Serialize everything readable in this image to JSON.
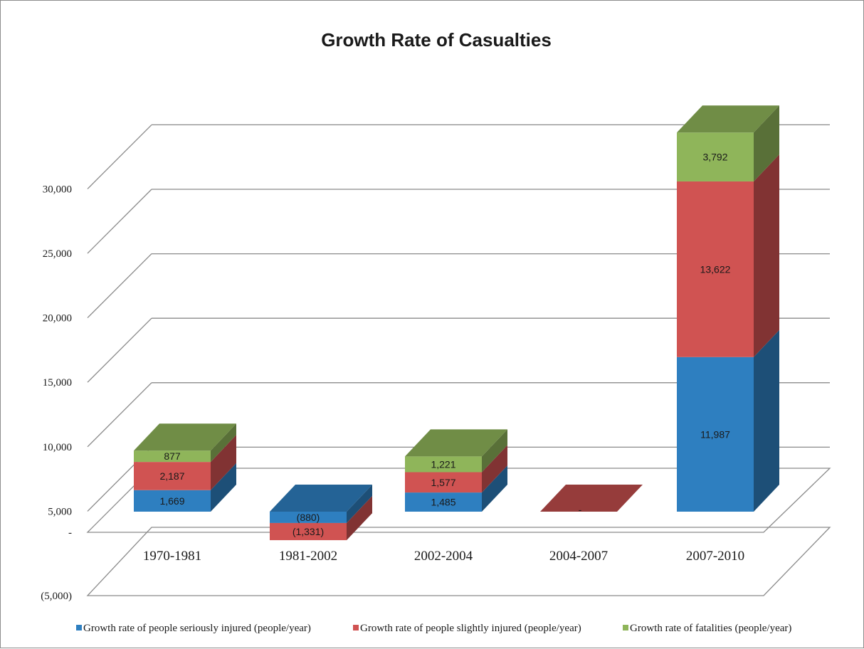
{
  "chart_data": {
    "type": "bar",
    "stacked": true,
    "three_d": true,
    "title": "Growth Rate of Casualties",
    "xlabel": "",
    "ylabel": "",
    "categories": [
      "1970-1981",
      "1981-2002",
      "2002-2004",
      "2004-2007",
      "2007-2010"
    ],
    "series": [
      {
        "name": "Growth rate of people seriously injured (people/year)",
        "color": "#2e7fc0",
        "values": [
          1669,
          -880,
          1485,
          0,
          11987
        ],
        "labels": [
          "1,669",
          "(880)",
          "1,485",
          "",
          "11,987"
        ]
      },
      {
        "name": "Growth rate of people slightly injured (people/year)",
        "color": "#d05352",
        "values": [
          2187,
          -1331,
          1577,
          0,
          13622
        ],
        "labels": [
          "2,187",
          "(1,331)",
          "1,577",
          "-",
          "13,622"
        ]
      },
      {
        "name": "Growth rate of fatalities (people/year)",
        "color": "#8fb55a",
        "values": [
          877,
          0,
          1221,
          0,
          3792
        ],
        "labels": [
          "877",
          "",
          "1,221",
          "",
          "3,792"
        ]
      }
    ],
    "ylim": [
      -5000,
      35000
    ],
    "yticks": [
      -5000,
      0,
      5000,
      10000,
      15000,
      20000,
      25000,
      30000
    ],
    "ytick_labels": [
      "(5,000)",
      "-",
      "5,000",
      "10,000",
      "15,000",
      "20,000",
      "25,000",
      "30,000"
    ],
    "grid": true,
    "legend_position": "bottom"
  }
}
